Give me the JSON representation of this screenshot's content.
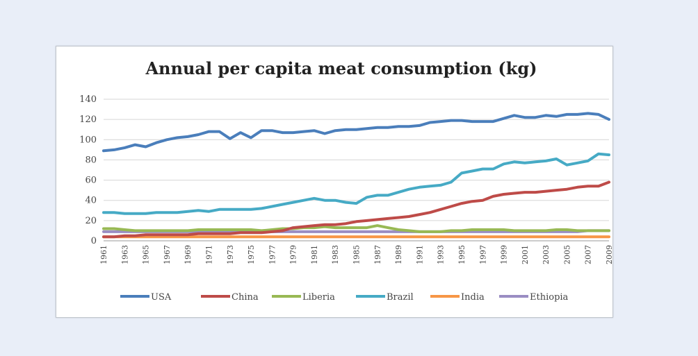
{
  "chart_data": {
    "type": "line",
    "title": "Annual per capita meat consumption (kg)",
    "xlabel": "",
    "ylabel": "",
    "ylim": [
      0,
      140
    ],
    "yticks": [
      "0",
      "20",
      "40",
      "60",
      "80",
      "100",
      "120",
      "140"
    ],
    "x": [
      1961,
      1962,
      1963,
      1964,
      1965,
      1966,
      1967,
      1968,
      1969,
      1970,
      1971,
      1972,
      1973,
      1974,
      1975,
      1976,
      1977,
      1978,
      1979,
      1980,
      1981,
      1982,
      1983,
      1984,
      1985,
      1986,
      1987,
      1988,
      1989,
      1990,
      1991,
      1992,
      1993,
      1994,
      1995,
      1996,
      1997,
      1998,
      1999,
      2000,
      2001,
      2002,
      2003,
      2004,
      2005,
      2006,
      2007,
      2008,
      2009
    ],
    "xtick_labels": [
      "1961",
      "1963",
      "1965",
      "1967",
      "1969",
      "1971",
      "1973",
      "1975",
      "1977",
      "1979",
      "1981",
      "1983",
      "1985",
      "1987",
      "1989",
      "1991",
      "1993",
      "1995",
      "1997",
      "1999",
      "2001",
      "2003",
      "2005",
      "2007",
      "2009"
    ],
    "grid": true,
    "legend_position": "bottom",
    "series": [
      {
        "name": "USA",
        "color": "#4a7ebb",
        "values": [
          89,
          90,
          92,
          95,
          93,
          97,
          100,
          102,
          103,
          105,
          108,
          108,
          101,
          107,
          102,
          109,
          109,
          107,
          107,
          108,
          109,
          106,
          109,
          110,
          110,
          111,
          112,
          112,
          113,
          113,
          114,
          117,
          118,
          119,
          119,
          118,
          118,
          118,
          121,
          124,
          122,
          122,
          124,
          123,
          125,
          125,
          126,
          125,
          120
        ]
      },
      {
        "name": "China",
        "color": "#be4b48",
        "values": [
          4,
          4,
          5,
          5,
          6,
          6,
          6,
          6,
          6,
          7,
          7,
          7,
          7,
          8,
          8,
          8,
          9,
          10,
          13,
          14,
          15,
          16,
          16,
          17,
          19,
          20,
          21,
          22,
          23,
          24,
          26,
          28,
          31,
          34,
          37,
          39,
          40,
          44,
          46,
          47,
          48,
          48,
          49,
          50,
          51,
          53,
          54,
          54,
          58
        ]
      },
      {
        "name": "Liberia",
        "color": "#98b954",
        "values": [
          12,
          12,
          11,
          10,
          10,
          10,
          10,
          10,
          10,
          11,
          11,
          11,
          11,
          11,
          11,
          10,
          11,
          12,
          12,
          13,
          13,
          14,
          13,
          13,
          13,
          13,
          15,
          13,
          11,
          10,
          9,
          9,
          9,
          10,
          10,
          11,
          11,
          11,
          11,
          10,
          10,
          10,
          10,
          11,
          11,
          10,
          10,
          10,
          10
        ]
      },
      {
        "name": "Brazil",
        "color": "#46aac5",
        "values": [
          28,
          28,
          27,
          27,
          27,
          28,
          28,
          28,
          29,
          30,
          29,
          31,
          31,
          31,
          31,
          32,
          34,
          36,
          38,
          40,
          42,
          40,
          40,
          38,
          37,
          43,
          45,
          45,
          48,
          51,
          53,
          54,
          55,
          58,
          67,
          69,
          71,
          71,
          76,
          78,
          77,
          78,
          79,
          81,
          75,
          77,
          79,
          86,
          85
        ]
      },
      {
        "name": "India",
        "color": "#f79646",
        "values": [
          4,
          4,
          4,
          4,
          4,
          4,
          4,
          4,
          4,
          4,
          4,
          4,
          4,
          4,
          4,
          4,
          4,
          4,
          4,
          4,
          4,
          4,
          4,
          4,
          4,
          4,
          4,
          4,
          4,
          4,
          4,
          4,
          4,
          4,
          4,
          4,
          4,
          4,
          4,
          4,
          4,
          4,
          4,
          4,
          4,
          4,
          4,
          4,
          4
        ]
      },
      {
        "name": "Ethiopia",
        "color": "#9a8dc3",
        "values": [
          9,
          9,
          9,
          9,
          9,
          9,
          9,
          9,
          9,
          9,
          9,
          9,
          9,
          9,
          9,
          9,
          9,
          9,
          9,
          9,
          9,
          9,
          9,
          9,
          9,
          9,
          9,
          9,
          9,
          9,
          9,
          9,
          9,
          9,
          9,
          9,
          9,
          9,
          9,
          9,
          9,
          9,
          9,
          9,
          9,
          9,
          10,
          10,
          10
        ]
      }
    ]
  }
}
